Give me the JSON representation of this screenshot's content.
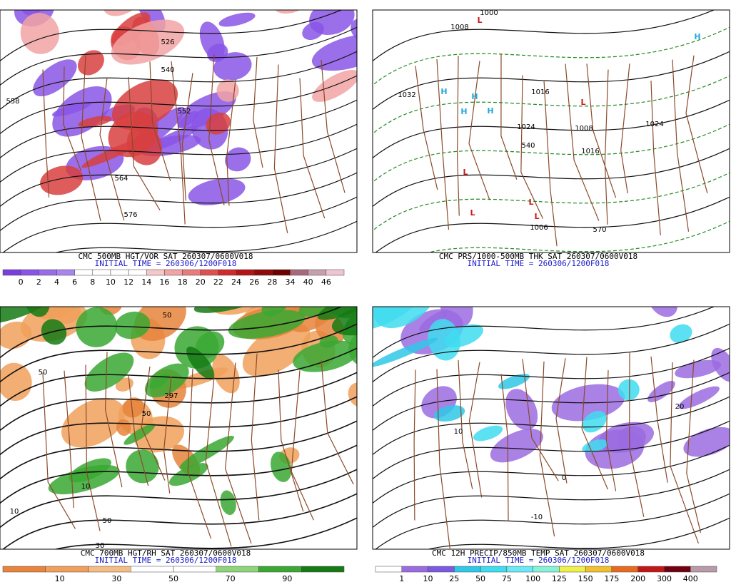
{
  "panels": [
    {
      "caption": "CMC 500MB HGT/VOR SAT 260307/0600V018",
      "initial": "INITIAL TIME = 260306/1200F018",
      "colorbar": {
        "labels": [
          "0",
          "2",
          "4",
          "6",
          "8",
          "10",
          "12",
          "14",
          "16",
          "18",
          "20",
          "22",
          "24",
          "26",
          "28",
          "34",
          "40",
          "46"
        ],
        "colors": [
          "#7a3ee0",
          "#8a55e6",
          "#9a6cea",
          "#a985ee",
          "#ffffff",
          "#ffffff",
          "#ffffff",
          "#ffffff",
          "#f7c7c7",
          "#f2a3a3",
          "#ea7b7b",
          "#e04f4f",
          "#d02a2a",
          "#b41414",
          "#8f0a0a",
          "#700000",
          "#a86a7a",
          "#c6a0b0",
          "#f0c4d4"
        ]
      },
      "contour_labels": [
        "526",
        "540",
        "552",
        "564",
        "576",
        "558"
      ],
      "symbols": []
    },
    {
      "caption": "CMC PRS/1000-500MB THK SAT 260307/0600V018",
      "initial": "INITIAL TIME = 260306/1200F018",
      "contour_labels": [
        "1000",
        "1008",
        "1016",
        "1032",
        "1024",
        "1016",
        "1024",
        "1006",
        "570",
        "540",
        "1008"
      ],
      "symbols": [
        "H",
        "H",
        "H",
        "H",
        "H",
        "L",
        "L",
        "L",
        "L",
        "L",
        "L"
      ]
    },
    {
      "caption": "CMC 700MB HGT/RH SAT 260307/0600V018",
      "initial": "INITIAL TIME = 260306/1200F018",
      "colorbar": {
        "labels": [
          "10",
          "30",
          "50",
          "70",
          "90"
        ],
        "colors": [
          "#e8843c",
          "#f0a05a",
          "#f5bc84",
          "#ffffff",
          "#ffffff",
          "#8fd37a",
          "#3aa832",
          "#157a14"
        ]
      },
      "contour_labels": [
        "50",
        "50",
        "10",
        "50",
        "30",
        "297",
        "50",
        "10"
      ],
      "symbols": []
    },
    {
      "caption": "CMC 12H PRECIP/850MB TEMP SAT 260307/0600V018",
      "initial": "INITIAL TIME = 260306/1200F018",
      "colorbar": {
        "labels": [
          "1",
          "10",
          "25",
          "50",
          "75",
          "100",
          "125",
          "150",
          "175",
          "200",
          "300",
          "400"
        ],
        "colors": [
          "#ffffff",
          "#9b6be0",
          "#7c5ae0",
          "#2fc8e8",
          "#40dcf0",
          "#6aeaf6",
          "#88f2d8",
          "#f0f04a",
          "#f0c030",
          "#e86a20",
          "#c01818",
          "#700010",
          "#b89aa8"
        ]
      },
      "contour_labels": [
        "-10",
        "10",
        "0",
        "20"
      ],
      "symbols": []
    }
  ]
}
